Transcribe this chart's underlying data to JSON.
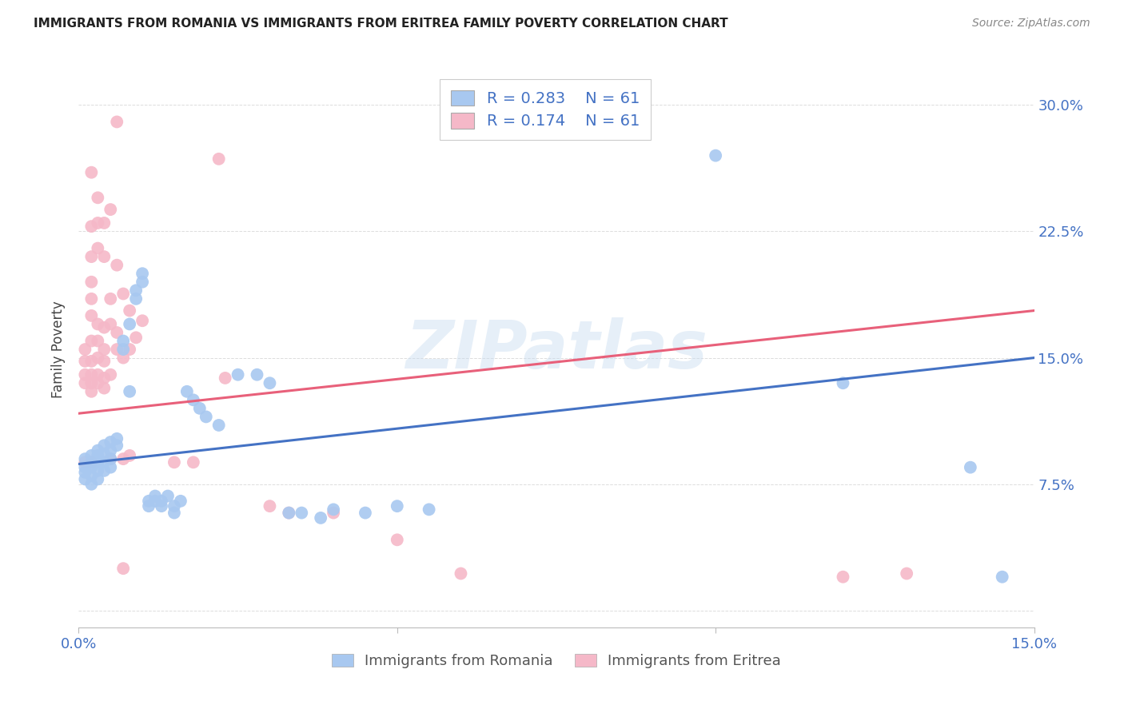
{
  "title": "IMMIGRANTS FROM ROMANIA VS IMMIGRANTS FROM ERITREA FAMILY POVERTY CORRELATION CHART",
  "source": "Source: ZipAtlas.com",
  "xlabel_legend_left": "Immigrants from Romania",
  "xlabel_legend_right": "Immigrants from Eritrea",
  "ylabel": "Family Poverty",
  "xlim": [
    0.0,
    0.15
  ],
  "ylim": [
    -0.01,
    0.32
  ],
  "xticks": [
    0.0,
    0.05,
    0.1,
    0.15
  ],
  "xtick_labels": [
    "0.0%",
    "",
    "",
    "15.0%"
  ],
  "yticks": [
    0.0,
    0.075,
    0.15,
    0.225,
    0.3
  ],
  "ytick_labels": [
    "",
    "7.5%",
    "15.0%",
    "22.5%",
    "30.0%"
  ],
  "romania_R": 0.283,
  "eritrea_R": 0.174,
  "N": 61,
  "romania_color": "#A8C8F0",
  "eritrea_color": "#F5B8C8",
  "romania_line_color": "#4472C4",
  "eritrea_line_color": "#E8607A",
  "romania_scatter": [
    [
      0.001,
      0.09
    ],
    [
      0.001,
      0.085
    ],
    [
      0.001,
      0.082
    ],
    [
      0.001,
      0.078
    ],
    [
      0.002,
      0.092
    ],
    [
      0.002,
      0.088
    ],
    [
      0.002,
      0.085
    ],
    [
      0.002,
      0.08
    ],
    [
      0.002,
      0.075
    ],
    [
      0.003,
      0.095
    ],
    [
      0.003,
      0.092
    ],
    [
      0.003,
      0.088
    ],
    [
      0.003,
      0.083
    ],
    [
      0.003,
      0.078
    ],
    [
      0.004,
      0.098
    ],
    [
      0.004,
      0.093
    ],
    [
      0.004,
      0.088
    ],
    [
      0.004,
      0.083
    ],
    [
      0.005,
      0.1
    ],
    [
      0.005,
      0.095
    ],
    [
      0.005,
      0.09
    ],
    [
      0.005,
      0.085
    ],
    [
      0.006,
      0.102
    ],
    [
      0.006,
      0.098
    ],
    [
      0.007,
      0.16
    ],
    [
      0.007,
      0.155
    ],
    [
      0.008,
      0.17
    ],
    [
      0.008,
      0.13
    ],
    [
      0.009,
      0.19
    ],
    [
      0.009,
      0.185
    ],
    [
      0.01,
      0.2
    ],
    [
      0.01,
      0.195
    ],
    [
      0.011,
      0.065
    ],
    [
      0.011,
      0.062
    ],
    [
      0.012,
      0.068
    ],
    [
      0.012,
      0.065
    ],
    [
      0.013,
      0.065
    ],
    [
      0.013,
      0.062
    ],
    [
      0.014,
      0.068
    ],
    [
      0.015,
      0.062
    ],
    [
      0.015,
      0.058
    ],
    [
      0.016,
      0.065
    ],
    [
      0.017,
      0.13
    ],
    [
      0.018,
      0.125
    ],
    [
      0.019,
      0.12
    ],
    [
      0.02,
      0.115
    ],
    [
      0.022,
      0.11
    ],
    [
      0.025,
      0.14
    ],
    [
      0.028,
      0.14
    ],
    [
      0.03,
      0.135
    ],
    [
      0.033,
      0.058
    ],
    [
      0.035,
      0.058
    ],
    [
      0.038,
      0.055
    ],
    [
      0.04,
      0.06
    ],
    [
      0.045,
      0.058
    ],
    [
      0.05,
      0.062
    ],
    [
      0.055,
      0.06
    ],
    [
      0.1,
      0.27
    ],
    [
      0.12,
      0.135
    ],
    [
      0.14,
      0.085
    ],
    [
      0.145,
      0.02
    ]
  ],
  "eritrea_scatter": [
    [
      0.001,
      0.155
    ],
    [
      0.001,
      0.148
    ],
    [
      0.001,
      0.14
    ],
    [
      0.001,
      0.135
    ],
    [
      0.001,
      0.088
    ],
    [
      0.002,
      0.26
    ],
    [
      0.002,
      0.228
    ],
    [
      0.002,
      0.21
    ],
    [
      0.002,
      0.195
    ],
    [
      0.002,
      0.185
    ],
    [
      0.002,
      0.175
    ],
    [
      0.002,
      0.16
    ],
    [
      0.002,
      0.148
    ],
    [
      0.002,
      0.14
    ],
    [
      0.002,
      0.135
    ],
    [
      0.002,
      0.13
    ],
    [
      0.002,
      0.088
    ],
    [
      0.003,
      0.245
    ],
    [
      0.003,
      0.23
    ],
    [
      0.003,
      0.215
    ],
    [
      0.003,
      0.17
    ],
    [
      0.003,
      0.16
    ],
    [
      0.003,
      0.15
    ],
    [
      0.003,
      0.14
    ],
    [
      0.003,
      0.135
    ],
    [
      0.004,
      0.23
    ],
    [
      0.004,
      0.21
    ],
    [
      0.004,
      0.168
    ],
    [
      0.004,
      0.155
    ],
    [
      0.004,
      0.148
    ],
    [
      0.004,
      0.138
    ],
    [
      0.004,
      0.132
    ],
    [
      0.005,
      0.238
    ],
    [
      0.005,
      0.185
    ],
    [
      0.005,
      0.17
    ],
    [
      0.005,
      0.14
    ],
    [
      0.005,
      0.09
    ],
    [
      0.006,
      0.29
    ],
    [
      0.006,
      0.205
    ],
    [
      0.006,
      0.165
    ],
    [
      0.006,
      0.155
    ],
    [
      0.007,
      0.188
    ],
    [
      0.007,
      0.15
    ],
    [
      0.007,
      0.09
    ],
    [
      0.007,
      0.025
    ],
    [
      0.008,
      0.178
    ],
    [
      0.008,
      0.155
    ],
    [
      0.008,
      0.092
    ],
    [
      0.009,
      0.162
    ],
    [
      0.01,
      0.172
    ],
    [
      0.015,
      0.088
    ],
    [
      0.018,
      0.088
    ],
    [
      0.022,
      0.268
    ],
    [
      0.023,
      0.138
    ],
    [
      0.03,
      0.062
    ],
    [
      0.033,
      0.058
    ],
    [
      0.04,
      0.058
    ],
    [
      0.05,
      0.042
    ],
    [
      0.06,
      0.022
    ],
    [
      0.12,
      0.02
    ],
    [
      0.13,
      0.022
    ]
  ],
  "watermark": "ZIPatlas",
  "background_color": "#FFFFFF",
  "grid_color": "#DDDDDD",
  "legend_box_color": "#F0F0F8"
}
